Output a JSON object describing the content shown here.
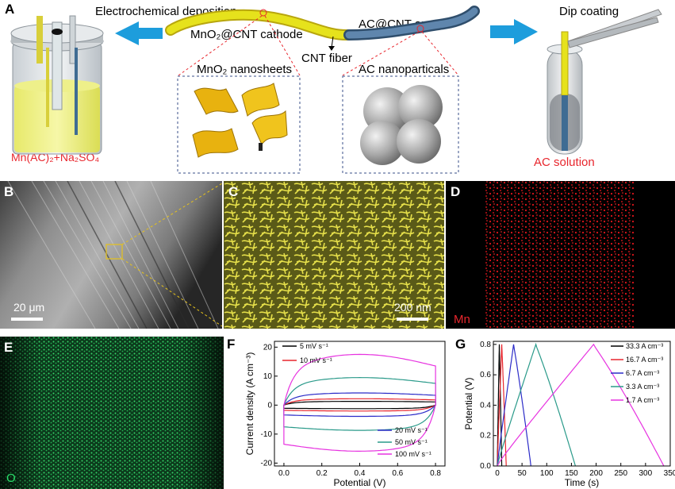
{
  "panel_a": {
    "label": "A",
    "electrochemical_deposition": "Electrochemical deposition",
    "dip_coating": "Dip coating",
    "cathode": "MnO₂@CNT cathode",
    "anode": "AC@CNT anode",
    "cnt_fiber": "CNT fiber",
    "mno2_nanosheets": "MnO₂ nanosheets",
    "ac_nanoparticals": "AC nanoparticals",
    "electrolyte": "Mn(AC)₂+Na₂SO₄",
    "ac_solution": "AC solution",
    "colors": {
      "red_text": "#e8262d",
      "arrow_blue": "#1d9ddc",
      "fiber_yellow": "#e6e21c",
      "fiber_blue": "#3f6c93"
    }
  },
  "panel_b": {
    "label": "B",
    "scale_bar": "20 μm"
  },
  "panel_c": {
    "label": "C",
    "scale_bar": "200 nm"
  },
  "panel_d": {
    "label": "D",
    "element": "Mn"
  },
  "panel_e": {
    "label": "E",
    "element": "O"
  },
  "chart_data": [
    {
      "panel": "F",
      "type": "line",
      "xlabel": "Potential (V)",
      "ylabel": "Current density (A cm⁻³)",
      "xlim": [
        -0.05,
        0.85
      ],
      "ylim": [
        -21,
        22
      ],
      "xticks": [
        "0.0",
        "0.2",
        "0.4",
        "0.6",
        "0.8"
      ],
      "yticks": [
        "-20",
        "-10",
        "0",
        "10",
        "20"
      ],
      "series": [
        {
          "name": "5 mV s⁻¹",
          "color": "#000000",
          "amp": 1.1,
          "bulge": 0.2
        },
        {
          "name": "10 mV s⁻¹",
          "color": "#e8262d",
          "amp": 1.8,
          "bulge": 0.4
        },
        {
          "name": "20 mV s⁻¹",
          "color": "#2b2bc8",
          "amp": 3.4,
          "bulge": 0.8
        },
        {
          "name": "50 mV s⁻¹",
          "color": "#2a9a8a",
          "amp": 7.5,
          "bulge": 2.0
        },
        {
          "name": "100 mV s⁻¹",
          "color": "#e733e0",
          "amp": 13.5,
          "bulge": 4.0
        }
      ]
    },
    {
      "panel": "G",
      "type": "line",
      "xlabel": "Time (s)",
      "ylabel": "Potential (V)",
      "xlim": [
        -8,
        350
      ],
      "ylim": [
        0,
        0.82
      ],
      "xticks": [
        "0",
        "50",
        "100",
        "150",
        "200",
        "250",
        "300",
        "350"
      ],
      "yticks": [
        "0.0",
        "0.2",
        "0.4",
        "0.6",
        "0.8"
      ],
      "series": [
        {
          "name": "33.3 A cm⁻³",
          "color": "#000000",
          "t_peak": 4,
          "t_end": 9
        },
        {
          "name": "16.7 A cm⁻³",
          "color": "#e8262d",
          "t_peak": 9,
          "t_end": 18
        },
        {
          "name": "6.7 A cm⁻³",
          "color": "#2b2bc8",
          "t_peak": 33,
          "t_end": 68
        },
        {
          "name": "3.3 A cm⁻³",
          "color": "#2a9a8a",
          "t_peak": 78,
          "t_end": 158
        },
        {
          "name": "1.7 A cm⁻³",
          "color": "#e733e0",
          "t_peak": 195,
          "t_end": 337
        }
      ]
    }
  ]
}
